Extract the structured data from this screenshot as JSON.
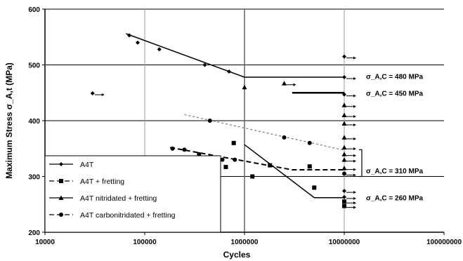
{
  "chart_data": {
    "type": "scatter",
    "xlabel": "Cycles",
    "ylabel": "Maximum Stress σ_A,t (MPa)",
    "x_scale": "log",
    "xlim": [
      10000,
      100000000
    ],
    "ylim": [
      200,
      600
    ],
    "x_ticks": [
      10000,
      100000,
      1000000,
      10000000,
      100000000
    ],
    "x_tick_labels": [
      "10000",
      "100000",
      "1000000",
      "10000000",
      "100000000"
    ],
    "y_ticks": [
      200,
      300,
      400,
      500,
      600
    ],
    "y_tick_labels": [
      "200",
      "300",
      "400",
      "500",
      "600"
    ],
    "grid": {
      "horizontal": true,
      "vertical": true
    },
    "legend_position": "bottom-left",
    "series": [
      {
        "name": "A4T",
        "marker": "diamond",
        "line_style": "solid",
        "points": [
          [
            30000,
            449
          ],
          [
            70000,
            553
          ],
          [
            85000,
            540
          ],
          [
            140000,
            528
          ],
          [
            400000,
            500
          ],
          [
            700000,
            488
          ],
          [
            10000000,
            515
          ],
          [
            10000000,
            478
          ],
          [
            10000000,
            447
          ],
          [
            10000000,
            274
          ],
          [
            10000000,
            263
          ]
        ],
        "runouts": [
          [
            30000,
            449
          ],
          [
            10000000,
            515
          ],
          [
            10000000,
            478
          ],
          [
            10000000,
            447
          ],
          [
            10000000,
            274
          ],
          [
            10000000,
            263
          ]
        ],
        "fit_line": [
          [
            65000,
            556
          ],
          [
            1000000,
            478
          ],
          [
            10000000,
            478
          ]
        ]
      },
      {
        "name": "A4T + fretting",
        "marker": "square",
        "line_style": "dashed",
        "points": [
          [
            650000,
            317
          ],
          [
            780000,
            360
          ],
          [
            1200000,
            300
          ],
          [
            1800000,
            320
          ],
          [
            4500000,
            318
          ],
          [
            5000000,
            280
          ],
          [
            10000000,
            255
          ],
          [
            10000000,
            247
          ]
        ],
        "runouts": [
          [
            10000000,
            255
          ],
          [
            10000000,
            247
          ]
        ],
        "fit_line": []
      },
      {
        "name": "A4T nitridated + fretting",
        "marker": "triangle",
        "line_style": "solid",
        "points": [
          [
            1000000,
            460
          ],
          [
            2500000,
            467
          ],
          [
            10000000,
            428
          ],
          [
            10000000,
            410
          ],
          [
            10000000,
            395
          ],
          [
            10000000,
            370
          ],
          [
            10000000,
            352
          ],
          [
            10000000,
            340
          ],
          [
            10000000,
            330
          ],
          [
            10000000,
            315
          ]
        ],
        "runouts": [
          [
            2500000,
            467
          ],
          [
            10000000,
            428
          ],
          [
            10000000,
            410
          ],
          [
            10000000,
            395
          ],
          [
            10000000,
            370
          ],
          [
            10000000,
            352
          ],
          [
            10000000,
            340
          ],
          [
            10000000,
            330
          ],
          [
            10000000,
            315
          ]
        ],
        "fit_line": [
          [
            1000000,
            357
          ],
          [
            5000000,
            262
          ],
          [
            10000000,
            262
          ]
        ]
      },
      {
        "name": "A4T carbonitridated + fretting",
        "marker": "circle",
        "line_style": "dashed",
        "points": [
          [
            190000,
            350
          ],
          [
            250000,
            348
          ],
          [
            350000,
            340
          ],
          [
            450000,
            400
          ],
          [
            600000,
            330
          ],
          [
            800000,
            330
          ],
          [
            2500000,
            370
          ],
          [
            4500000,
            360
          ],
          [
            10000000,
            305
          ]
        ],
        "runouts": [
          [
            10000000,
            305
          ]
        ],
        "fit_line": [
          [
            180000,
            352
          ],
          [
            3000000,
            312
          ],
          [
            10000000,
            312
          ]
        ]
      }
    ],
    "extra_lines": [
      {
        "style": "dotted",
        "points": [
          [
            250000,
            411
          ],
          [
            10000000,
            347
          ]
        ]
      },
      {
        "style": "solid-thick",
        "points": [
          [
            3000000,
            450
          ],
          [
            10000000,
            450
          ]
        ]
      }
    ],
    "bracket": {
      "x": 15000000,
      "y": [
        300,
        348
      ]
    },
    "annotations": [
      {
        "label": "σ_A,C = 480 MPa",
        "x": 15000000,
        "y": 480
      },
      {
        "label": "σ_A,C = 450 MPa",
        "x": 15000000,
        "y": 450
      },
      {
        "label": "σ_A,C = 310 MPa",
        "x": 15000000,
        "y": 311
      },
      {
        "label": "σ_A,C = 260 MPa",
        "x": 15000000,
        "y": 262
      }
    ]
  }
}
